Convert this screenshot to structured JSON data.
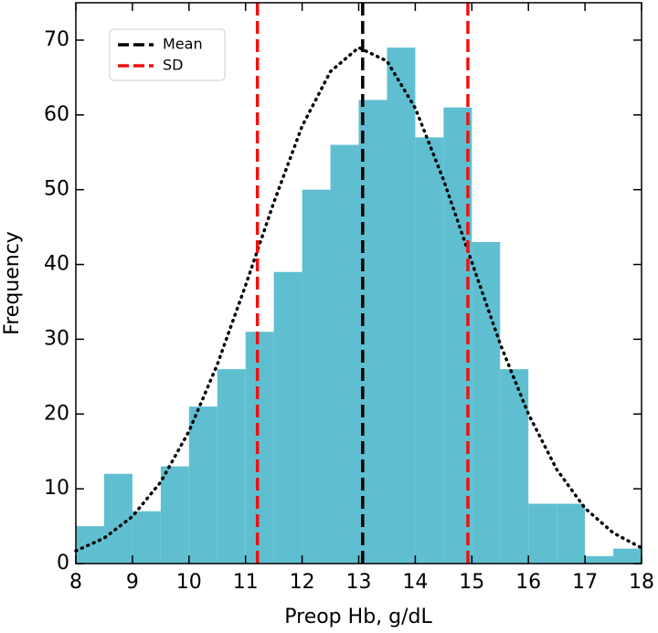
{
  "chart_data": {
    "type": "histogram",
    "xlabel": "Preop Hb, g/dL",
    "ylabel": "Frequency",
    "bins": [
      8,
      8.5,
      9,
      9.5,
      10,
      10.5,
      11,
      11.5,
      12,
      12.5,
      13,
      13.5,
      14,
      14.5,
      15,
      15.5,
      16,
      16.5,
      17,
      17.5,
      18
    ],
    "values": [
      5,
      12,
      7,
      13,
      21,
      26,
      31,
      39,
      50,
      56,
      62,
      69,
      57,
      61,
      43,
      26,
      8,
      8,
      1,
      2
    ],
    "color": "#5fbfd0",
    "xlim": [
      8,
      18
    ],
    "ylim": [
      0,
      75
    ],
    "xticks": [
      8,
      9,
      10,
      11,
      12,
      13,
      14,
      15,
      16,
      17,
      18
    ],
    "yticks": [
      0,
      10,
      20,
      30,
      40,
      50,
      60,
      70
    ],
    "series": [
      {
        "name": "Mean",
        "color": "#000000",
        "x": [
          13.07
        ]
      },
      {
        "name": "SD",
        "color": "#ee1111",
        "x": [
          11.21,
          14.93
        ]
      }
    ],
    "curve": {
      "color": "#000000",
      "x": [
        8,
        8.5,
        9,
        9.5,
        10,
        10.5,
        11,
        11.5,
        12,
        12.5,
        13,
        13.5,
        14,
        14.5,
        15,
        15.5,
        16,
        16.5,
        17,
        17.5,
        18
      ],
      "values": [
        1.7,
        3.4,
        6.3,
        10.9,
        17.7,
        26.6,
        37.2,
        48.3,
        58.5,
        65.8,
        69.0,
        67.2,
        60.9,
        51.3,
        40.3,
        29.4,
        20.0,
        12.6,
        7.4,
        4.1,
        2.1
      ]
    },
    "legend": "upper left"
  }
}
